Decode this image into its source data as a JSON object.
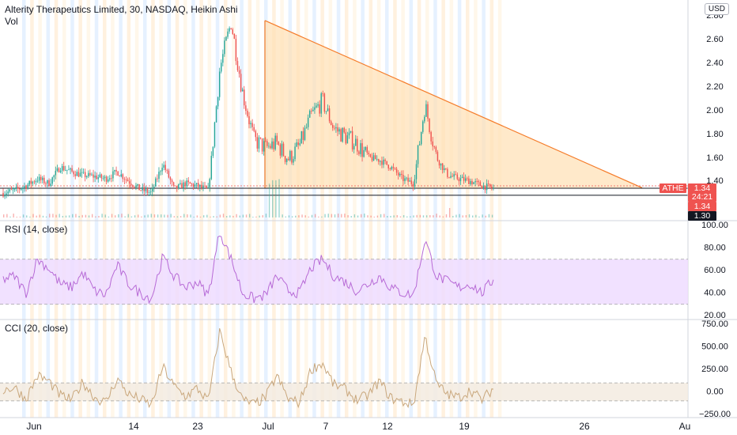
{
  "header": {
    "title": "Alterity Therapeutics Limited, 30, NASDAQ, Heikin Ashi",
    "volume_label": "Vol",
    "currency_badge": "USD"
  },
  "colors": {
    "up": "#26a69a",
    "down": "#ef5350",
    "triangle_stroke": "#f57c2a",
    "triangle_fill": "#ffe0b3",
    "rsi_line": "#b76ad6",
    "rsi_band": "#eedcff",
    "cci_line": "#c9a77c",
    "cci_band": "#f3ebe0",
    "tag_red": "#ef5350"
  },
  "price_axis": {
    "ticks": [
      "2.80",
      "2.60",
      "2.40",
      "2.20",
      "2.00",
      "1.80",
      "1.60",
      "1.40"
    ],
    "tags": [
      {
        "text": "ATHE",
        "bg": "#ef5350",
        "fg": "#ffffff"
      },
      {
        "text": "1.34",
        "bg": "#ef5350",
        "fg": "#ffffff"
      },
      {
        "text": "24:21",
        "bg": "#ef5350",
        "fg": "#ffffff"
      },
      {
        "text": "1.34",
        "bg": "#ef5350",
        "fg": "#ffffff"
      },
      {
        "text": "1.30",
        "bg": "#131722",
        "fg": "#ffffff"
      }
    ]
  },
  "rsi_panel": {
    "label": "RSI (14, close)",
    "ticks": [
      "100.00",
      "80.00",
      "60.00",
      "40.00",
      "20.00"
    ]
  },
  "cci_panel": {
    "label": "CCI (20, close)",
    "ticks": [
      "750.00",
      "500.00",
      "250.00",
      "0.00",
      "−250.00"
    ]
  },
  "time_axis": {
    "labels": [
      "Jun",
      "14",
      "23",
      "Jul",
      "7",
      "12",
      "19",
      "26",
      "Au"
    ]
  },
  "chart_data": [
    {
      "type": "candlestick",
      "title": "Alterity Therapeutics Limited, 30, NASDAQ, Heikin Ashi",
      "ylim": [
        1.24,
        2.82
      ],
      "close_approx": [
        1.3,
        1.32,
        1.36,
        1.42,
        1.38,
        1.52,
        1.48,
        1.45,
        1.44,
        1.42,
        1.48,
        1.4,
        1.33,
        1.3,
        1.55,
        1.33,
        1.38,
        1.36,
        1.32,
        2.35,
        2.75,
        2.15,
        1.75,
        1.68,
        1.72,
        1.58,
        1.7,
        1.95,
        2.08,
        1.85,
        1.78,
        1.72,
        1.6,
        1.58,
        1.52,
        1.42,
        1.38,
        2.05,
        1.6,
        1.45,
        1.42,
        1.4,
        1.36,
        1.34
      ],
      "annotations": [
        {
          "type": "descending triangle",
          "points": [
            [
              1.3,
              2.76
            ],
            [
              1.34,
              1.35
            ]
          ]
        },
        {
          "type": "horizontal lines",
          "values": [
            1.34,
            1.28
          ]
        }
      ],
      "last_price": 1.34,
      "current_tag": "1.30"
    },
    {
      "type": "line",
      "title": "RSI (14, close)",
      "ylim": [
        20,
        100
      ],
      "band": [
        30,
        70
      ],
      "values": [
        52,
        55,
        40,
        70,
        62,
        48,
        45,
        58,
        42,
        38,
        65,
        48,
        40,
        35,
        72,
        55,
        45,
        50,
        38,
        95,
        70,
        40,
        35,
        38,
        55,
        42,
        40,
        62,
        70,
        55,
        50,
        42,
        48,
        55,
        45,
        40,
        38,
        88,
        55,
        50,
        45,
        48,
        40,
        52
      ]
    },
    {
      "type": "line",
      "title": "CCI (20, close)",
      "ylim": [
        -250,
        750
      ],
      "band": [
        -100,
        100
      ],
      "values": [
        20,
        50,
        -80,
        180,
        120,
        -40,
        -90,
        110,
        -60,
        -120,
        150,
        -30,
        -80,
        -150,
        280,
        60,
        -50,
        40,
        -100,
        680,
        220,
        -90,
        -140,
        -60,
        180,
        -80,
        -120,
        250,
        320,
        80,
        30,
        -90,
        -40,
        120,
        -70,
        -110,
        -140,
        620,
        90,
        -30,
        -60,
        20,
        -90,
        40
      ]
    }
  ]
}
